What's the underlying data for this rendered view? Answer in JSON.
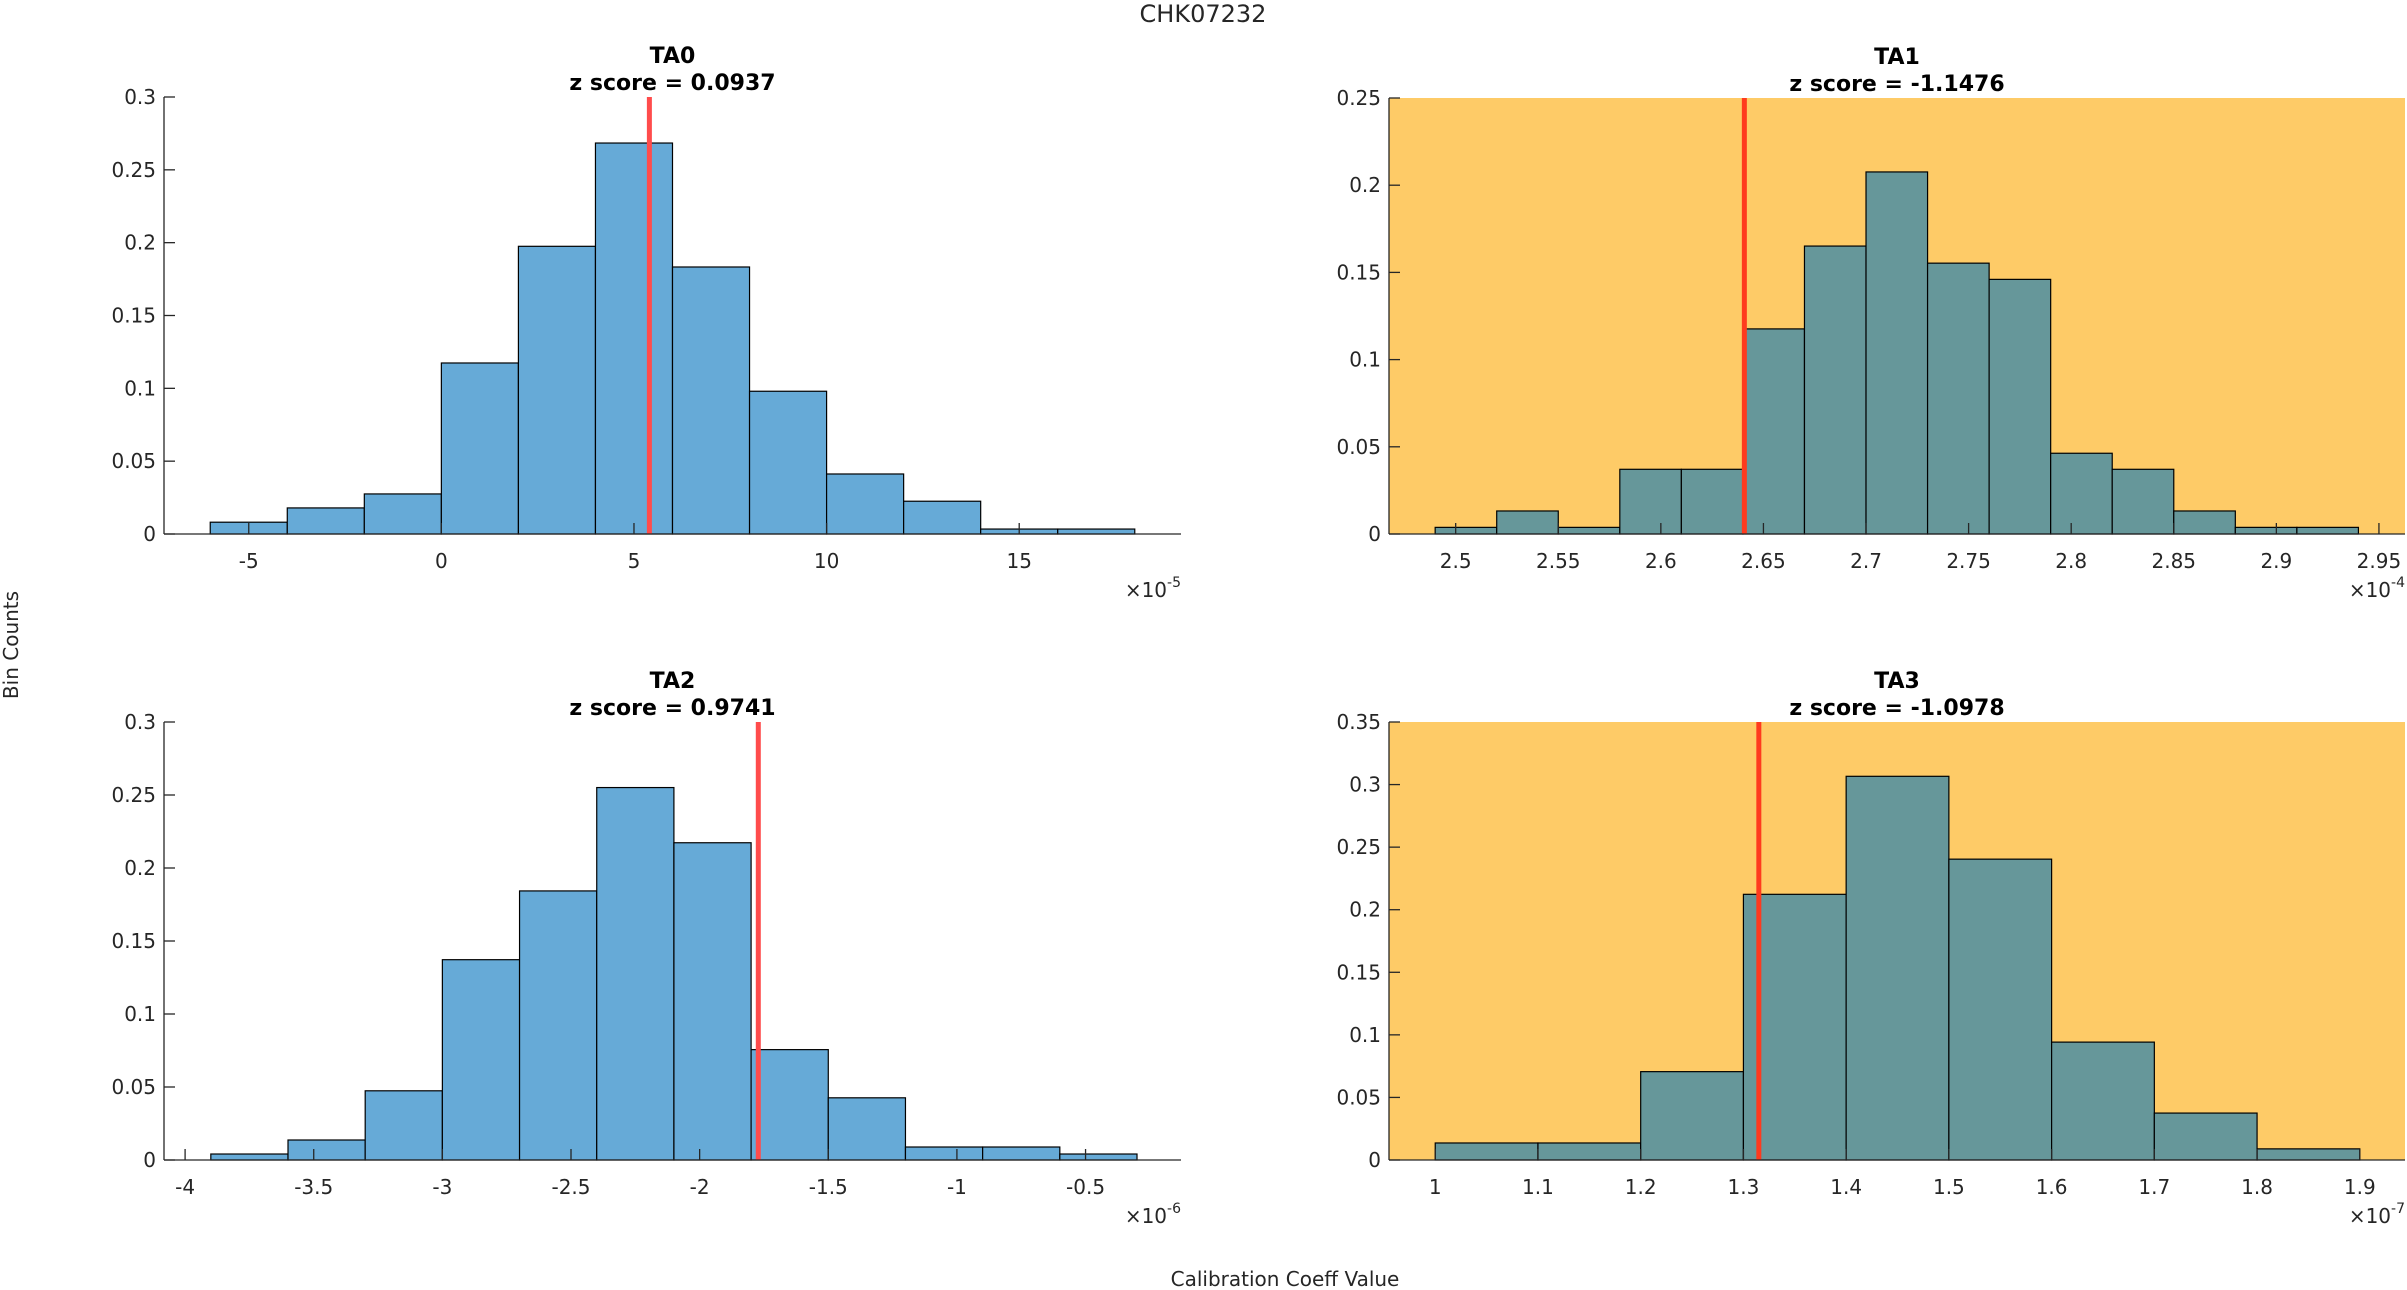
{
  "figure": {
    "title": "CHK07232",
    "ylabel": "Bin Counts",
    "xlabel": "Calibration Coeff Value"
  },
  "colors": {
    "bar_normal": "#66AAD7",
    "bar_flagged": "#66979A",
    "flag_background": "#FECB67",
    "ref_line": "#FF4C4C",
    "ref_line_flagged": "#FF3A1E"
  },
  "chart_data": [
    {
      "type": "bar",
      "subtype": "histogram",
      "id": "TA0",
      "title": "TA0",
      "subtitle": "z score = 0.0937",
      "flagged": false,
      "x_exponent": "-5",
      "bin_edges": [
        -6,
        -4,
        -2,
        0,
        2,
        4,
        6,
        8,
        10,
        12,
        14,
        16,
        18
      ],
      "values": [
        0.0081,
        0.0179,
        0.0275,
        0.1174,
        0.1975,
        0.2684,
        0.1833,
        0.098,
        0.0412,
        0.0225,
        0.0034,
        0.0034
      ],
      "ref_value": 5.4,
      "xlim": [
        -7.2,
        19.2
      ],
      "ylim": [
        0,
        0.3
      ],
      "xticks": [
        -5,
        0,
        5,
        10,
        15
      ],
      "xtick_labels": [
        "-5",
        "0",
        "5",
        "10",
        "15"
      ],
      "yticks": [
        0,
        0.05,
        0.1,
        0.15,
        0.2,
        0.25,
        0.3
      ],
      "ytick_labels": [
        "0",
        "0.05",
        "0.1",
        "0.15",
        "0.2",
        "0.25",
        "0.3"
      ]
    },
    {
      "type": "bar",
      "subtype": "histogram",
      "id": "TA1",
      "title": "TA1",
      "subtitle": "z score = -1.1476",
      "flagged": true,
      "x_exponent": "-4",
      "bin_edges": [
        2.49,
        2.52,
        2.55,
        2.58,
        2.61,
        2.64,
        2.67,
        2.7,
        2.73,
        2.76,
        2.79,
        2.82,
        2.85,
        2.88,
        2.91,
        2.94
      ],
      "values": [
        0.0038,
        0.0132,
        0.0038,
        0.0371,
        0.0371,
        0.1176,
        0.1651,
        0.2076,
        0.1553,
        0.146,
        0.0463,
        0.0371,
        0.0132,
        0.0038,
        0.0038
      ],
      "ref_value": 2.6407,
      "xlim": [
        2.4675,
        2.9627
      ],
      "ylim": [
        0,
        0.25
      ],
      "xticks": [
        2.5,
        2.55,
        2.6,
        2.65,
        2.7,
        2.75,
        2.8,
        2.85,
        2.9,
        2.95
      ],
      "xtick_labels": [
        "2.5",
        "2.55",
        "2.6",
        "2.65",
        "2.7",
        "2.75",
        "2.8",
        "2.85",
        "2.9",
        "2.95"
      ],
      "yticks": [
        0,
        0.05,
        0.1,
        0.15,
        0.2,
        0.25
      ],
      "ytick_labels": [
        "0",
        "0.05",
        "0.1",
        "0.15",
        "0.2",
        "0.25"
      ]
    },
    {
      "type": "bar",
      "subtype": "histogram",
      "id": "TA2",
      "title": "TA2",
      "subtitle": "z score = 0.9741",
      "flagged": false,
      "x_exponent": "-6",
      "bin_edges": [
        -3.9,
        -3.6,
        -3.3,
        -3.0,
        -2.7,
        -2.4,
        -2.1,
        -1.8,
        -1.5,
        -1.2,
        -0.9,
        -0.6,
        -0.3
      ],
      "values": [
        0.0041,
        0.0137,
        0.0474,
        0.1372,
        0.1843,
        0.2551,
        0.2173,
        0.0756,
        0.0426,
        0.0089,
        0.0089,
        0.0041
      ],
      "ref_value": -1.772,
      "xlim": [
        -4.082,
        -0.129
      ],
      "ylim": [
        0,
        0.3
      ],
      "xticks": [
        -4,
        -3.5,
        -3,
        -2.5,
        -2,
        -1.5,
        -1,
        -0.5
      ],
      "xtick_labels": [
        "-4",
        "-3.5",
        "-3",
        "-2.5",
        "-2",
        "-1.5",
        "-1",
        "-0.5"
      ],
      "yticks": [
        0,
        0.05,
        0.1,
        0.15,
        0.2,
        0.25,
        0.3
      ],
      "ytick_labels": [
        "0",
        "0.05",
        "0.1",
        "0.15",
        "0.2",
        "0.25",
        "0.3"
      ]
    },
    {
      "type": "bar",
      "subtype": "histogram",
      "id": "TA3",
      "title": "TA3",
      "subtitle": "z score = -1.0978",
      "flagged": true,
      "x_exponent": "-7",
      "bin_edges": [
        1.0,
        1.1,
        1.2,
        1.3,
        1.4,
        1.5,
        1.6,
        1.7,
        1.8,
        1.9
      ],
      "values": [
        0.0136,
        0.0136,
        0.0706,
        0.2123,
        0.3066,
        0.2404,
        0.0942,
        0.0375,
        0.0089
      ],
      "ref_value": 1.315,
      "xlim": [
        0.955,
        1.944
      ],
      "ylim": [
        0,
        0.35
      ],
      "xticks": [
        1,
        1.1,
        1.2,
        1.3,
        1.4,
        1.5,
        1.6,
        1.7,
        1.8,
        1.9
      ],
      "xtick_labels": [
        "1",
        "1.1",
        "1.2",
        "1.3",
        "1.4",
        "1.5",
        "1.6",
        "1.7",
        "1.8",
        "1.9"
      ],
      "yticks": [
        0,
        0.05,
        0.1,
        0.15,
        0.2,
        0.25,
        0.3,
        0.35
      ],
      "ytick_labels": [
        "0",
        "0.05",
        "0.1",
        "0.15",
        "0.2",
        "0.25",
        "0.3",
        "0.35"
      ]
    }
  ]
}
